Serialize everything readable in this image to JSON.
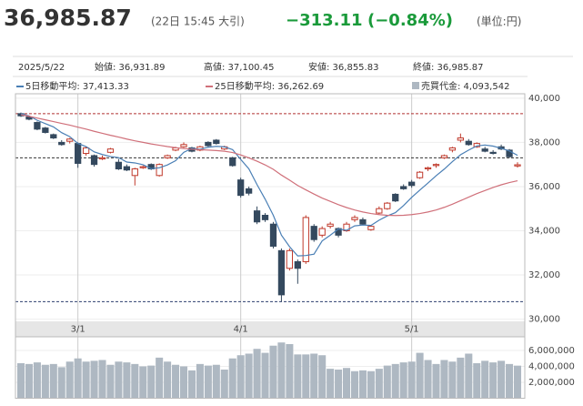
{
  "header": {
    "price": "36,985.87",
    "time": "(22日 15:45 大引)",
    "change": "−313.11",
    "change_pct": "(−0.84%)",
    "unit": "(単位:円)"
  },
  "info": {
    "date": "2025/5/22",
    "open": "始値: 36,931.89",
    "high": "高値: 37,100.45",
    "low": "安値: 36,855.83",
    "close": "終値: 36,985.87",
    "ma5": "5日移動平均: 37,413.33",
    "ma25": "25日移動平均: 36,262.69",
    "turnover": "売買代金: 4,093,542"
  },
  "chart_data": {
    "type": "candlestick",
    "categories": [
      null,
      null,
      null,
      null,
      null,
      null,
      null,
      "3/1",
      null,
      null,
      null,
      null,
      null,
      null,
      null,
      null,
      null,
      null,
      null,
      null,
      null,
      null,
      null,
      null,
      null,
      null,
      null,
      "4/1",
      null,
      null,
      null,
      null,
      null,
      null,
      null,
      null,
      null,
      null,
      null,
      null,
      null,
      null,
      null,
      null,
      null,
      null,
      null,
      null,
      "5/1",
      null,
      null,
      null,
      null,
      null,
      null,
      null,
      null,
      null,
      null,
      null,
      null,
      null
    ],
    "open": [
      39300,
      39150,
      38900,
      38650,
      38350,
      38000,
      38050,
      37950,
      37500,
      37400,
      37250,
      37550,
      37100,
      36900,
      36500,
      36850,
      37000,
      36500,
      37300,
      37650,
      37800,
      37750,
      37650,
      38000,
      38100,
      37700,
      37300,
      36300,
      35900,
      34900,
      34700,
      34300,
      33100,
      32300,
      32600,
      32600,
      34200,
      33800,
      34200,
      34100,
      34000,
      34500,
      34500,
      34050,
      34800,
      35000,
      35650,
      36000,
      36200,
      36400,
      36800,
      36950,
      37300,
      37650,
      38100,
      38050,
      37800,
      37700,
      37550,
      37800,
      37650,
      36931.89
    ],
    "high": [
      39350,
      39200,
      38950,
      38700,
      38400,
      38100,
      38200,
      38000,
      37800,
      37450,
      37400,
      37750,
      37250,
      37000,
      36850,
      36950,
      37050,
      37050,
      37450,
      37800,
      38000,
      37800,
      37850,
      38050,
      38150,
      37850,
      37350,
      36400,
      36000,
      35100,
      34800,
      34400,
      33200,
      33200,
      32700,
      34700,
      34300,
      34200,
      34400,
      34150,
      34400,
      34700,
      34600,
      34250,
      35100,
      35300,
      35700,
      36100,
      36300,
      36700,
      36900,
      37050,
      37450,
      37800,
      38400,
      38150,
      38000,
      37800,
      37650,
      37900,
      37700,
      37100.45
    ],
    "low": [
      39150,
      39000,
      38550,
      38400,
      38150,
      37850,
      37950,
      36850,
      37400,
      36900,
      37200,
      37500,
      36750,
      36700,
      36050,
      36800,
      36750,
      36450,
      37250,
      37600,
      37750,
      37550,
      37600,
      37800,
      37900,
      37650,
      36900,
      35500,
      35600,
      34300,
      34400,
      33200,
      30800,
      32200,
      31600,
      32500,
      33500,
      33700,
      34100,
      33700,
      33950,
      34400,
      34250,
      34000,
      34750,
      34950,
      35300,
      35850,
      35950,
      36350,
      36700,
      36850,
      37250,
      37550,
      38000,
      37850,
      37750,
      37550,
      37450,
      37650,
      37300,
      36855.83
    ],
    "close": [
      39200,
      39050,
      38600,
      38450,
      38200,
      37900,
      38150,
      37050,
      37750,
      37000,
      37300,
      37700,
      36800,
      36750,
      36800,
      36900,
      36800,
      37000,
      37400,
      37750,
      37900,
      37600,
      37800,
      37850,
      37950,
      37800,
      36950,
      35600,
      35700,
      34400,
      34500,
      33300,
      31100,
      33100,
      32300,
      34600,
      33600,
      34100,
      34300,
      33800,
      34300,
      34600,
      34300,
      34200,
      35000,
      35250,
      35350,
      35900,
      36050,
      36650,
      36850,
      37000,
      37400,
      37750,
      38200,
      37900,
      37950,
      37600,
      37500,
      37700,
      37350,
      36985.87
    ],
    "up_color": "#c0392b",
    "down_color": "#34495e",
    "series": [
      {
        "name": "5日移動平均",
        "color": "#4a7fb5",
        "values": [
          39300,
          39200,
          39000,
          38850,
          38700,
          38440,
          38260,
          37950,
          37810,
          37570,
          37450,
          37360,
          37310,
          37110,
          37070,
          36990,
          36810,
          36850,
          36980,
          37170,
          37550,
          37730,
          37690,
          37780,
          37820,
          37800,
          37670,
          37230,
          36800,
          36090,
          35430,
          34700,
          33800,
          33280,
          32860,
          32880,
          32940,
          33540,
          33800,
          34080,
          34020,
          34220,
          34260,
          34240,
          34480,
          34670,
          34820,
          35140,
          35510,
          35840,
          36160,
          36490,
          36790,
          37130,
          37440,
          37650,
          37840,
          37880,
          37830,
          37730,
          37610,
          37413.33
        ]
      },
      {
        "name": "25日移動平均",
        "color": "#d0707a",
        "values": [
          39250,
          39180,
          39100,
          39020,
          38940,
          38860,
          38780,
          38690,
          38600,
          38500,
          38410,
          38320,
          38240,
          38150,
          38070,
          38000,
          37930,
          37870,
          37810,
          37760,
          37720,
          37690,
          37670,
          37650,
          37630,
          37600,
          37540,
          37430,
          37300,
          37150,
          36980,
          36780,
          36520,
          36290,
          36050,
          35850,
          35660,
          35480,
          35330,
          35180,
          35050,
          34940,
          34850,
          34780,
          34730,
          34700,
          34690,
          34700,
          34730,
          34780,
          34850,
          34940,
          35060,
          35200,
          35360,
          35520,
          35680,
          35820,
          35960,
          36080,
          36180,
          36262.69
        ]
      }
    ],
    "volume": {
      "name": "売買代金",
      "color": "#aeb8c2",
      "values": [
        4400000,
        4300000,
        4500000,
        4200000,
        4300000,
        3900000,
        4600000,
        5000000,
        4600000,
        4700000,
        4800000,
        4200000,
        4600000,
        4500000,
        4300000,
        4000000,
        4100000,
        5100000,
        4600000,
        4200000,
        4000000,
        3500000,
        4300000,
        4100000,
        4200000,
        3600000,
        5000000,
        5400000,
        5600000,
        6200000,
        5700000,
        6600000,
        7000000,
        6800000,
        5500000,
        5500000,
        5600000,
        5400000,
        3700000,
        3600000,
        3800000,
        3400000,
        3500000,
        3400000,
        3700000,
        4100000,
        4300000,
        4500000,
        4600000,
        5700000,
        4800000,
        4300000,
        4800000,
        4600000,
        5100000,
        5600000,
        4400000,
        4700000,
        4500000,
        4700000,
        4300000,
        4093542
      ],
      "ylim": [
        0,
        7140000
      ],
      "yticks": [
        {
          "value": 2000000,
          "label": "2,000,000"
        },
        {
          "value": 4000000,
          "label": "4,000,000"
        },
        {
          "value": 6000000,
          "label": "6,000,000"
        }
      ]
    },
    "ylim": [
      29900,
      40200
    ],
    "yticks": [
      {
        "value": 30000,
        "label": "30,000"
      },
      {
        "value": 32000,
        "label": "32,000"
      },
      {
        "value": 34000,
        "label": "34,000"
      },
      {
        "value": 36000,
        "label": "36,000"
      },
      {
        "value": 38000,
        "label": "38,000"
      },
      {
        "value": 40000,
        "label": "40,000"
      }
    ],
    "ref_lines": [
      {
        "value": 39300,
        "color": "#b03030"
      },
      {
        "value": 37298.98,
        "color": "#333333"
      },
      {
        "value": 30792.74,
        "color": "#2c3e6e"
      }
    ],
    "grid": true
  }
}
